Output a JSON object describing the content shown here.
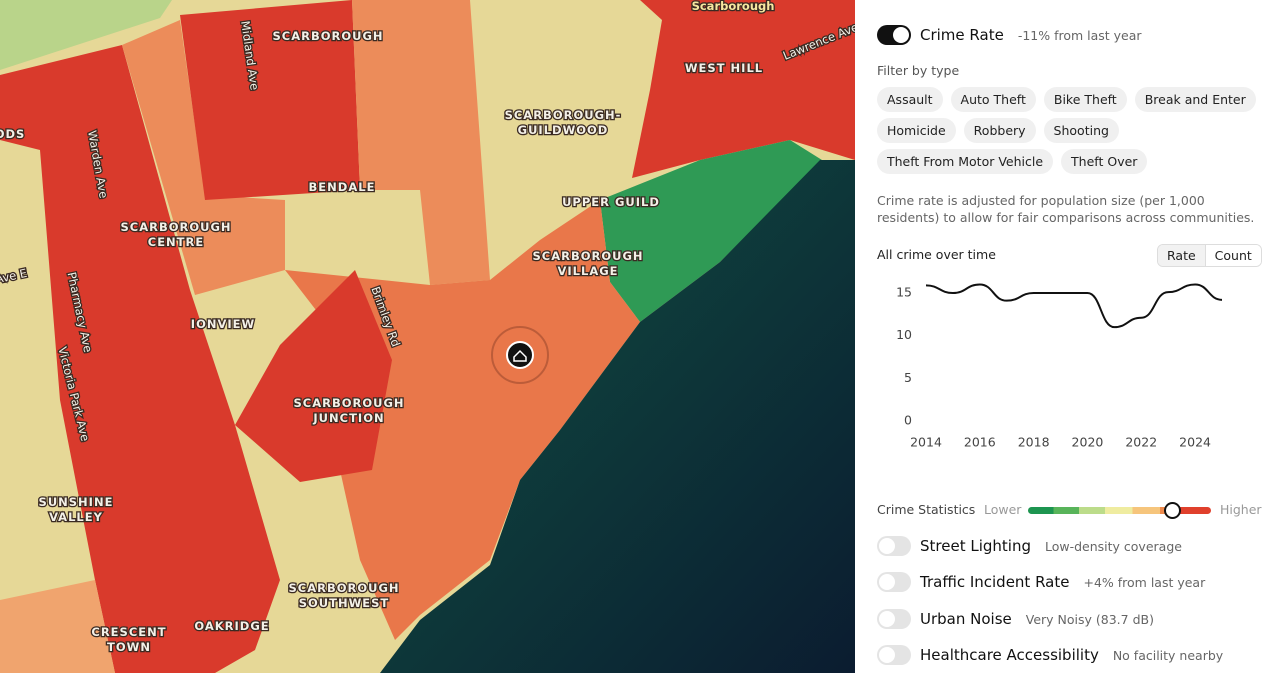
{
  "map": {
    "places": [
      {
        "lines": [
          "SCARBOROUGH"
        ]
      },
      {
        "lines": [
          "Scarborough"
        ]
      },
      {
        "lines": [
          "WEST HILL"
        ]
      },
      {
        "lines": [
          "SCARBOROUGH-",
          "GUILDWOOD"
        ]
      },
      {
        "lines": [
          "BENDALE"
        ]
      },
      {
        "lines": [
          "UPPER GUILD"
        ]
      },
      {
        "lines": [
          "SCARBOROUGH",
          "CENTRE"
        ]
      },
      {
        "lines": [
          "SCARBOROUGH",
          "VILLAGE"
        ]
      },
      {
        "lines": [
          "IONVIEW"
        ]
      },
      {
        "lines": [
          "SCARBOROUGH",
          "JUNCTION"
        ]
      },
      {
        "lines": [
          "SUNSHINE",
          "VALLEY"
        ]
      },
      {
        "lines": [
          "SCARBOROUGH",
          "SOUTHWEST"
        ]
      },
      {
        "lines": [
          "CRESCENT",
          "TOWN"
        ]
      },
      {
        "lines": [
          "OAKRIDGE"
        ]
      },
      {
        "lines": [
          "ODS"
        ]
      }
    ],
    "roads": [
      "Midland Ave",
      "Warden Ave",
      "Pharmacy Ave",
      "Victoria Park Ave",
      "Brimley Rd",
      "Lawrence Ave",
      "Ave E"
    ]
  },
  "panel": {
    "primary_layer": {
      "name": "Crime Rate",
      "detail": "-11% from last year",
      "enabled": true
    },
    "filter_label": "Filter by type",
    "filters": [
      "Assault",
      "Auto Theft",
      "Bike Theft",
      "Break and Enter",
      "Homicide",
      "Robbery",
      "Shooting",
      "Theft From Motor Vehicle",
      "Theft Over"
    ],
    "note": "Crime rate is adjusted for population size (per 1,000 residents) to allow for fair comparisons across communities.",
    "chart_title": "All crime over time",
    "modes": [
      {
        "label": "Rate",
        "selected": true
      },
      {
        "label": "Count",
        "selected": false
      }
    ],
    "chart": {
      "type": "line",
      "x": [
        2014,
        2015,
        2016,
        2017,
        2018,
        2019,
        2020,
        2021,
        2022,
        2023,
        2024,
        2025
      ],
      "values": [
        15.9,
        15,
        16,
        14.1,
        15,
        15,
        15,
        11,
        12.1,
        15.1,
        16,
        14.2
      ],
      "xlim": [
        2014,
        2025
      ],
      "ylim": [
        0,
        15
      ],
      "xticks": [
        2014,
        2016,
        2018,
        2020,
        2022,
        2024
      ],
      "yticks": [
        0,
        5,
        10,
        15
      ],
      "color": "#111111"
    },
    "scale": {
      "label": "Crime Statistics",
      "low": "Lower",
      "high": "Higher"
    },
    "layers": [
      {
        "name": "Street Lighting",
        "detail": "Low-density coverage",
        "enabled": false
      },
      {
        "name": "Traffic Incident Rate",
        "detail": "+4% from last year",
        "enabled": false
      },
      {
        "name": "Urban Noise",
        "detail": "Very Noisy (83.7 dB)",
        "enabled": false
      },
      {
        "name": "Healthcare Accessibility",
        "detail": "No facility nearby",
        "enabled": false
      }
    ]
  }
}
